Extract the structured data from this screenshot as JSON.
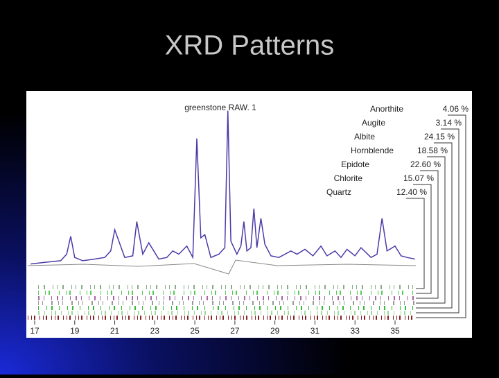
{
  "title": "XRD Patterns",
  "chart_data": {
    "type": "line",
    "annotation": "greenstone RAW. 1",
    "x": [
      16.8,
      17.5,
      18.3,
      18.6,
      18.8,
      19.0,
      19.4,
      20.0,
      20.5,
      20.8,
      21.0,
      21.5,
      21.9,
      22.1,
      22.4,
      22.7,
      23.2,
      23.6,
      23.9,
      24.2,
      24.6,
      24.9,
      25.1,
      25.3,
      25.5,
      25.8,
      26.2,
      26.5,
      26.65,
      26.8,
      27.1,
      27.3,
      27.45,
      27.6,
      27.8,
      27.95,
      28.1,
      28.3,
      28.5,
      28.8,
      29.2,
      29.8,
      30.1,
      30.5,
      30.9,
      31.3,
      31.6,
      32.0,
      32.3,
      32.6,
      33.0,
      33.3,
      33.8,
      34.1,
      34.35,
      34.6,
      35.0,
      35.3,
      35.6,
      36.0
    ],
    "series": [
      {
        "color": "#4b3aa8",
        "values": [
          4,
          5,
          6,
          10,
          21,
          8,
          6,
          7,
          8,
          12,
          25,
          8,
          9,
          30,
          10,
          17,
          7,
          8,
          12,
          10,
          15,
          8,
          81,
          20,
          22,
          8,
          10,
          14,
          98,
          18,
          10,
          15,
          30,
          12,
          14,
          38,
          14,
          32,
          16,
          9,
          8,
          12,
          10,
          13,
          9,
          15,
          9,
          12,
          8,
          13,
          9,
          14,
          8,
          10,
          32,
          12,
          15,
          9,
          8,
          7
        ]
      }
    ],
    "xlim": [
      16.7,
      36.1
    ],
    "xticks": [
      17,
      19,
      21,
      23,
      25,
      27,
      29,
      31,
      33,
      35
    ],
    "ylim": [
      0,
      100
    ],
    "phases": {
      "names": [
        "Anorthite",
        "Augite",
        "Albite",
        "Hornblende",
        "Epidote",
        "Chlorite",
        "Quartz"
      ],
      "values": [
        4.06,
        3.14,
        24.15,
        18.58,
        22.6,
        15.07,
        12.4
      ],
      "value_labels": [
        "4.06 %",
        "3.14 %",
        "24.15 %",
        "18.58 %",
        "22.60 %",
        "15.07 %",
        "12.40 %"
      ]
    }
  }
}
